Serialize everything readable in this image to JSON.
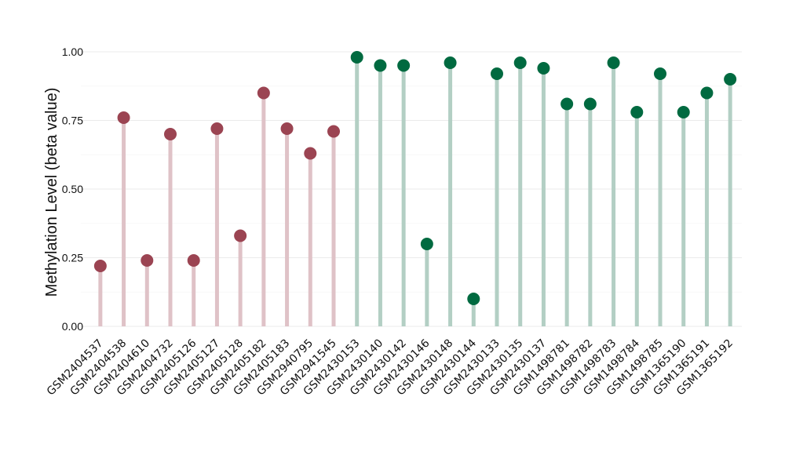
{
  "chart_data": {
    "type": "lollipop",
    "title": "",
    "xlabel": "",
    "ylabel": "Methylation Level (beta value)",
    "ylim": [
      0,
      1
    ],
    "yticks": [
      "0.00",
      "0.25",
      "0.50",
      "0.75",
      "1.00"
    ],
    "grid": true,
    "legend": "none",
    "group_colors": {
      "group_a": {
        "point": "#9b4452",
        "stem": "#dfc2c7"
      },
      "group_b": {
        "point": "#006a40",
        "stem": "#b3cfc4"
      }
    },
    "categories": [
      "GSM2404537",
      "GSM2404538",
      "GSM2404610",
      "GSM2404732",
      "GSM2405126",
      "GSM2405127",
      "GSM2405128",
      "GSM2405182",
      "GSM2405183",
      "GSM2940795",
      "GSM2941545",
      "GSM2430153",
      "GSM2430140",
      "GSM2430142",
      "GSM2430146",
      "GSM2430148",
      "GSM2430144",
      "GSM2430133",
      "GSM2430135",
      "GSM2430137",
      "GSM1498781",
      "GSM1498782",
      "GSM1498783",
      "GSM1498784",
      "GSM1498785",
      "GSM1365190",
      "GSM1365191",
      "GSM1365192"
    ],
    "values": [
      0.22,
      0.76,
      0.24,
      0.7,
      0.24,
      0.72,
      0.33,
      0.85,
      0.72,
      0.63,
      0.71,
      0.98,
      0.95,
      0.95,
      0.3,
      0.96,
      0.1,
      0.92,
      0.96,
      0.94,
      0.81,
      0.81,
      0.96,
      0.78,
      0.92,
      0.78,
      0.85,
      0.9
    ],
    "groups": [
      "group_a",
      "group_a",
      "group_a",
      "group_a",
      "group_a",
      "group_a",
      "group_a",
      "group_a",
      "group_a",
      "group_a",
      "group_a",
      "group_b",
      "group_b",
      "group_b",
      "group_b",
      "group_b",
      "group_b",
      "group_b",
      "group_b",
      "group_b",
      "group_b",
      "group_b",
      "group_b",
      "group_b",
      "group_b",
      "group_b",
      "group_b",
      "group_b"
    ]
  }
}
